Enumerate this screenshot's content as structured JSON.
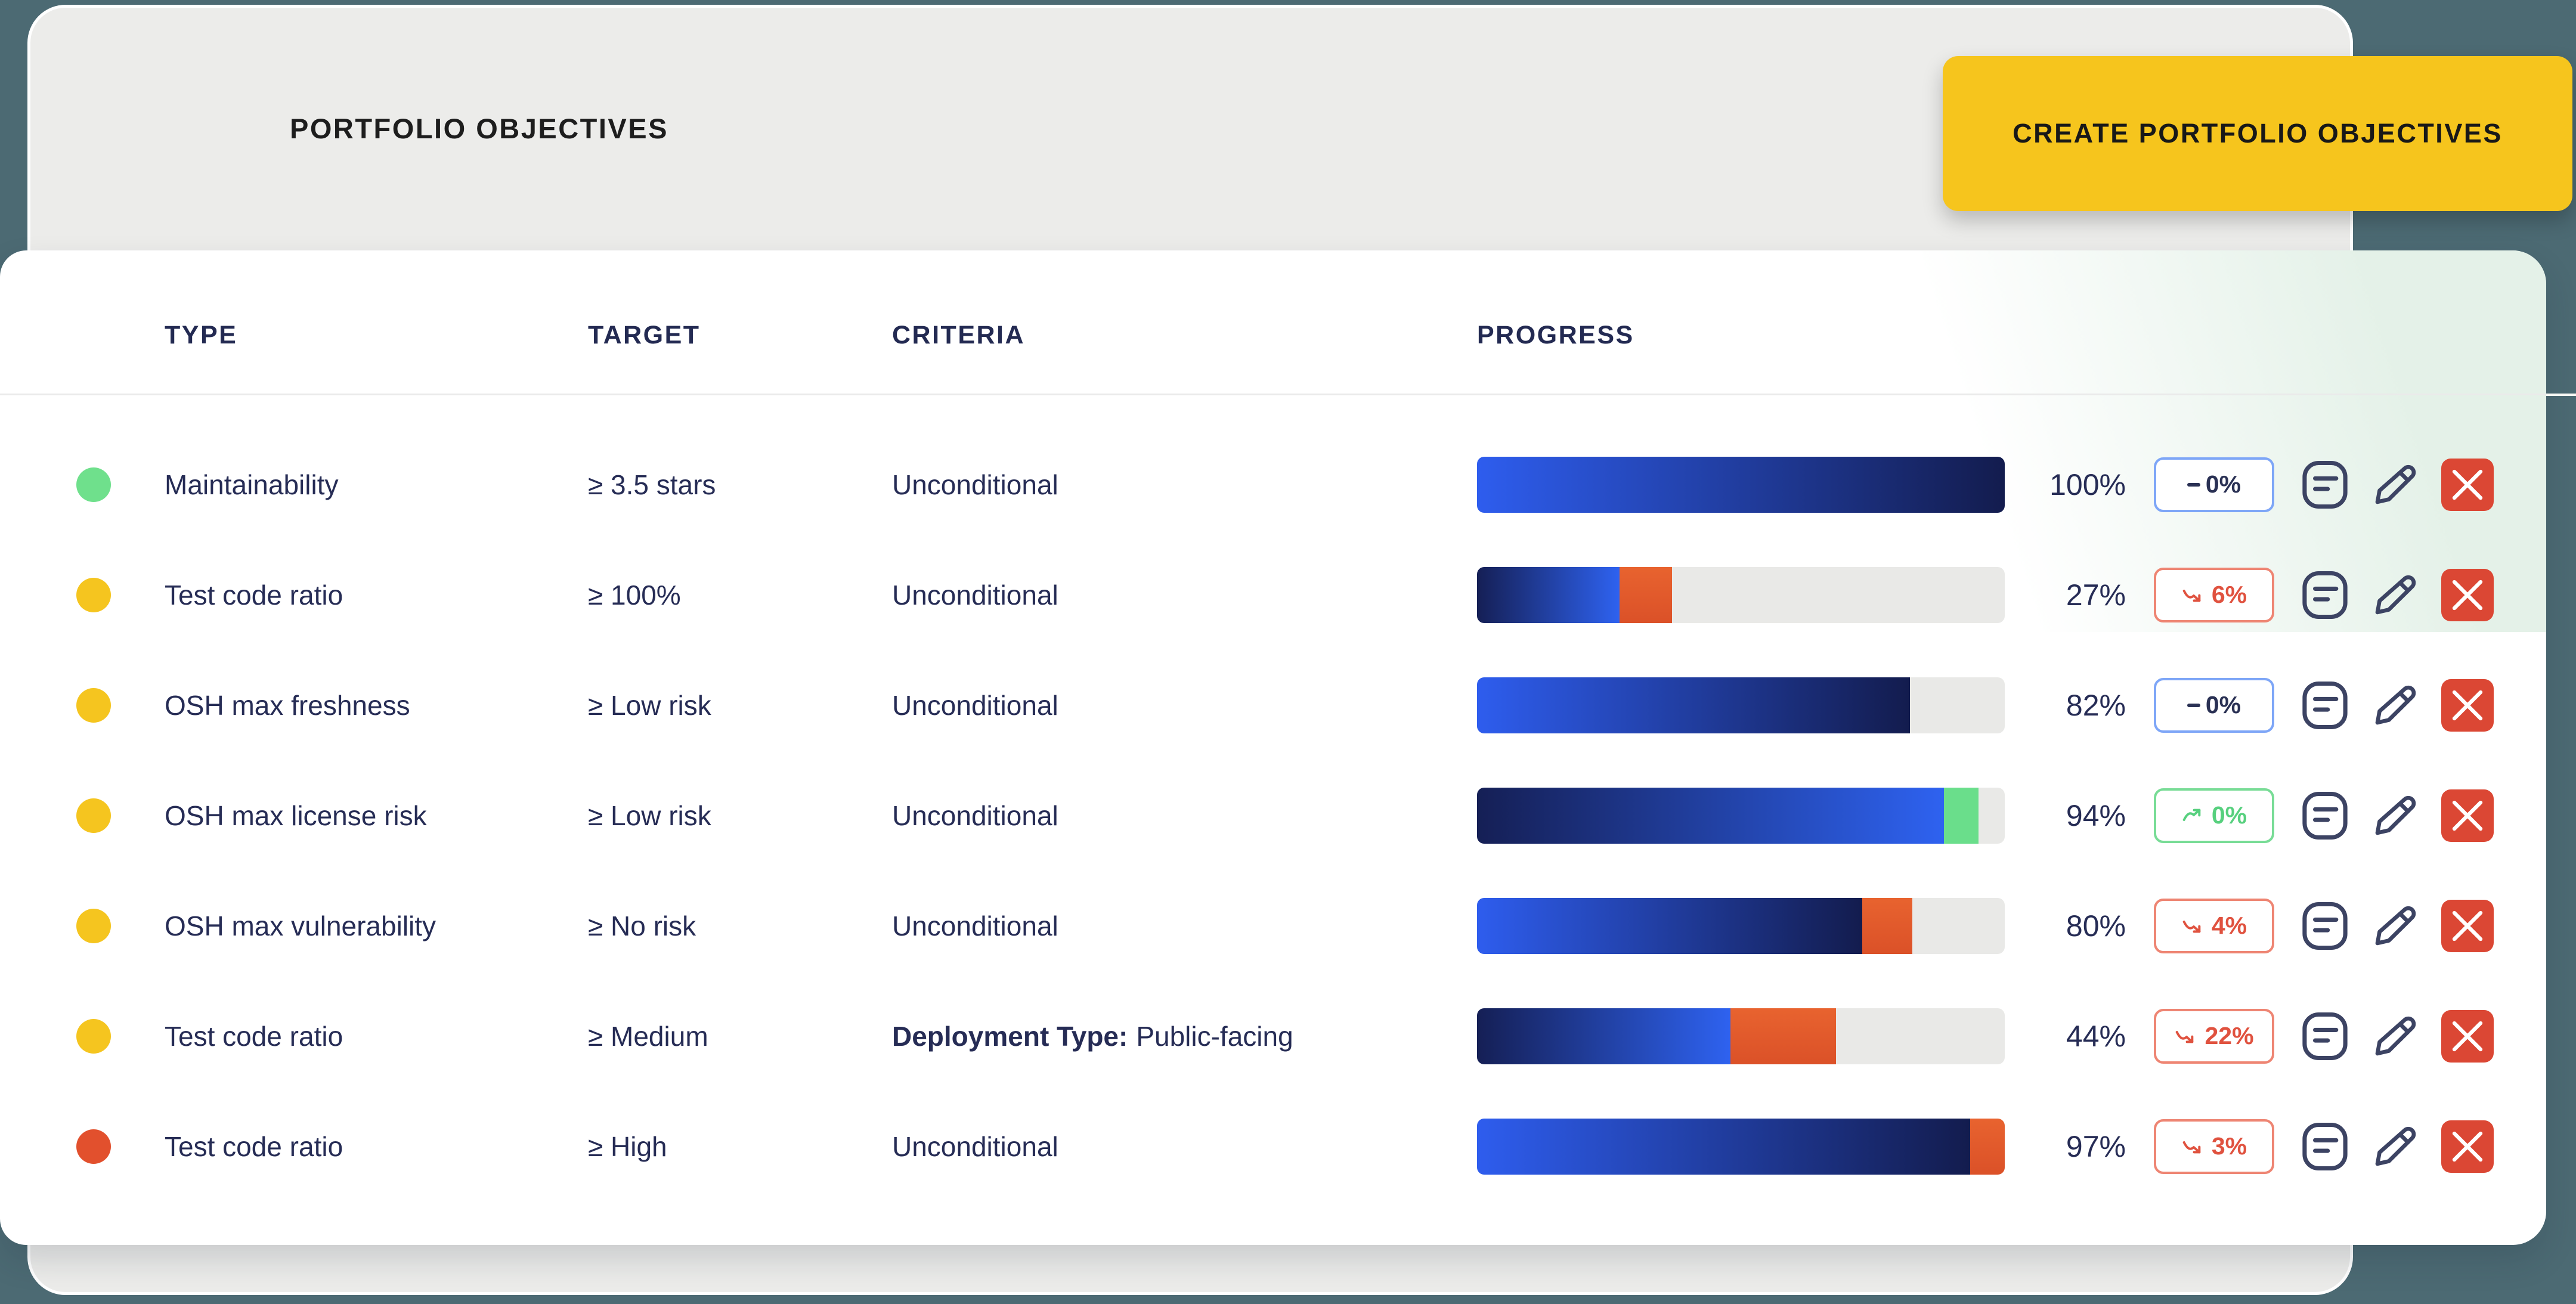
{
  "theme": {
    "background_teal": "#4C6A73",
    "card_gray": "#ECECEA",
    "card_white": "#FFFFFF",
    "mint_tint": "#E4F1E8",
    "text_navy": "#262C55",
    "button_yellow": "#F6C51D",
    "bar_bright_blue": "#2E5DEE",
    "bar_dark_navy": "#131C4E",
    "bar_orange": "#E2592E",
    "bar_green": "#6ADE8B",
    "bar_track": "#E9E9E7",
    "badge_equal_border": "#7EA6F7",
    "badge_down_color": "#E0523F",
    "badge_up_color": "#57D07E",
    "delete_red": "#DB4734",
    "dot_green": "#6FE08C",
    "dot_yellow": "#F5C51F",
    "dot_red": "#E2502D"
  },
  "header": {
    "title": "PORTFOLIO OBJECTIVES",
    "create_button_label": "CREATE PORTFOLIO OBJECTIVES"
  },
  "table": {
    "columns": {
      "type": "TYPE",
      "target": "TARGET",
      "criteria": "CRITERIA",
      "progress": "PROGRESS"
    }
  },
  "rows": [
    {
      "status": "good",
      "status_color": "#6FE08C",
      "type": "Maintainability",
      "target": "≥ 3.5 stars",
      "criteria": "Unconditional",
      "progress_label": "100%",
      "trend": "equal",
      "trend_label": "0%",
      "bar": {
        "segments": [
          {
            "kind": "bright-to-dark",
            "width": 100
          }
        ]
      }
    },
    {
      "status": "warning",
      "status_color": "#F5C51F",
      "type": "Test code ratio",
      "target": "≥ 100%",
      "criteria": "Unconditional",
      "progress_label": "27%",
      "trend": "down",
      "trend_label": "6%",
      "bar": {
        "segments": [
          {
            "kind": "dark-to-bright",
            "width": 27
          },
          {
            "kind": "orange",
            "width": 10
          }
        ]
      }
    },
    {
      "status": "warning",
      "status_color": "#F5C51F",
      "type": "OSH max freshness",
      "target": "≥ Low risk",
      "criteria": "Unconditional",
      "progress_label": "82%",
      "trend": "equal",
      "trend_label": "0%",
      "bar": {
        "segments": [
          {
            "kind": "bright-to-dark",
            "width": 82
          }
        ]
      }
    },
    {
      "status": "warning",
      "status_color": "#F5C51F",
      "type": "OSH max license risk",
      "target": "≥ Low risk",
      "criteria": "Unconditional",
      "progress_label": "94%",
      "trend": "up",
      "trend_label": "0%",
      "bar": {
        "segments": [
          {
            "kind": "dark-to-bright",
            "width": 88.5
          },
          {
            "kind": "green",
            "width": 6.5
          }
        ]
      }
    },
    {
      "status": "warning",
      "status_color": "#F5C51F",
      "type": "OSH max vulnerability",
      "target": "≥ No risk",
      "criteria": "Unconditional",
      "progress_label": "80%",
      "trend": "down",
      "trend_label": "4%",
      "bar": {
        "segments": [
          {
            "kind": "bright-to-dark",
            "width": 73
          },
          {
            "kind": "orange",
            "width": 9.5
          }
        ]
      }
    },
    {
      "status": "warning",
      "status_color": "#F5C51F",
      "type": "Test code ratio",
      "target": "≥ Medium",
      "criteria_bold": "Deployment Type:",
      "criteria": "Public-facing",
      "progress_label": "44%",
      "trend": "down",
      "trend_label": "22%",
      "bar": {
        "segments": [
          {
            "kind": "dark-to-bright",
            "width": 48
          },
          {
            "kind": "orange",
            "width": 20
          }
        ]
      }
    },
    {
      "status": "critical",
      "status_color": "#E2502D",
      "type": "Test code ratio",
      "target": "≥ High",
      "criteria": "Unconditional",
      "progress_label": "97%",
      "trend": "down",
      "trend_label": "3%",
      "bar": {
        "segments": [
          {
            "kind": "bright-to-dark",
            "width": 93.5
          },
          {
            "kind": "orange",
            "width": 6.5
          }
        ]
      }
    }
  ]
}
